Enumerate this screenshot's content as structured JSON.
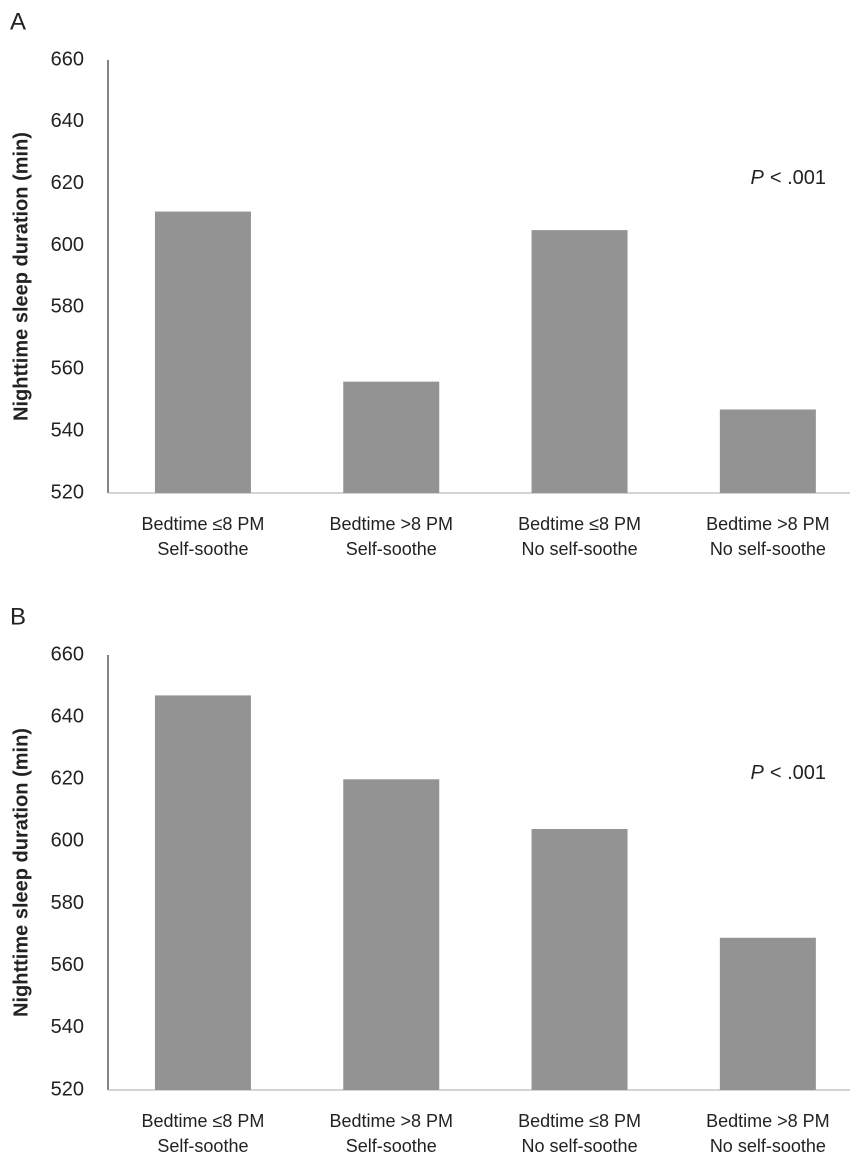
{
  "chart_data": [
    {
      "type": "bar",
      "panel": "A",
      "ylabel": "Nighttime sleep duration (min)",
      "annotation": [
        "P",
        "<  .001"
      ],
      "categories": [
        [
          "Bedtime ≤8 PM",
          "Self-soothe"
        ],
        [
          "Bedtime >8 PM",
          "Self-soothe"
        ],
        [
          "Bedtime ≤8 PM",
          "No self-soothe"
        ],
        [
          "Bedtime >8 PM",
          "No self-soothe"
        ]
      ],
      "values": [
        611,
        556,
        605,
        547
      ],
      "color": "#939393",
      "ylim": [
        520,
        660
      ],
      "yticks": [
        520,
        540,
        560,
        580,
        600,
        620,
        640,
        660
      ]
    },
    {
      "type": "bar",
      "panel": "B",
      "ylabel": "Nighttime sleep duration (min)",
      "annotation": [
        "P",
        "<  .001"
      ],
      "categories": [
        [
          "Bedtime ≤8 PM",
          "Self-soothe"
        ],
        [
          "Bedtime >8 PM",
          "Self-soothe"
        ],
        [
          "Bedtime ≤8 PM",
          "No self-soothe"
        ],
        [
          "Bedtime >8 PM",
          "No self-soothe"
        ]
      ],
      "values": [
        647,
        620,
        604,
        569
      ],
      "color": "#939393",
      "ylim": [
        520,
        660
      ],
      "yticks": [
        520,
        540,
        560,
        580,
        600,
        620,
        640,
        660
      ]
    }
  ]
}
